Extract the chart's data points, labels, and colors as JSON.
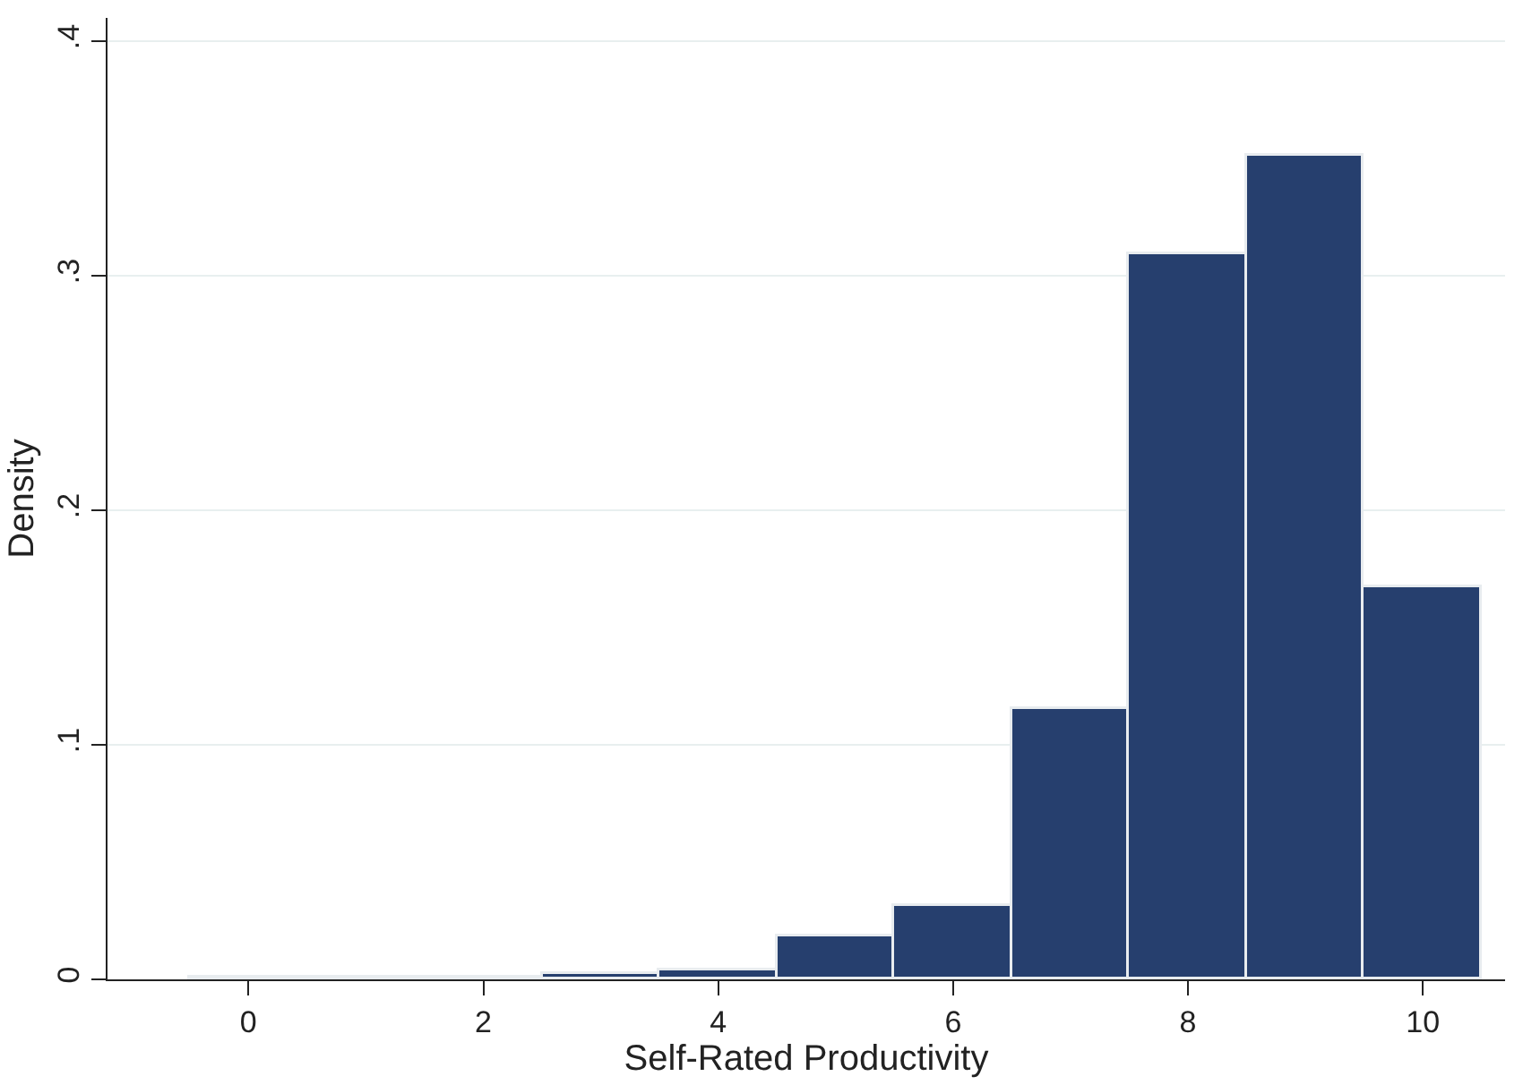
{
  "chart_data": {
    "type": "histogram",
    "xlabel": "Self-Rated Productivity",
    "ylabel": "Density",
    "bins": [
      -0.5,
      0.5,
      1.5,
      2.5,
      3.5,
      4.5,
      5.5,
      6.5,
      7.5,
      8.5,
      9.5,
      10.5
    ],
    "values": [
      0.001,
      0.001,
      0.001,
      0.002,
      0.004,
      0.018,
      0.031,
      0.115,
      0.309,
      0.351,
      0.167
    ],
    "color": "#263f6e",
    "xlim": [
      -1.2,
      10.7
    ],
    "xticks": [
      0,
      2,
      4,
      6,
      8,
      10
    ],
    "ylim": [
      0,
      0.41
    ],
    "yticks": [
      {
        "value": 0,
        "label": "0"
      },
      {
        "value": 0.1,
        "label": ".1"
      },
      {
        "value": 0.2,
        "label": ".2"
      },
      {
        "value": 0.3,
        "label": ".3"
      },
      {
        "value": 0.4,
        "label": ".4"
      }
    ],
    "grid": "y"
  }
}
